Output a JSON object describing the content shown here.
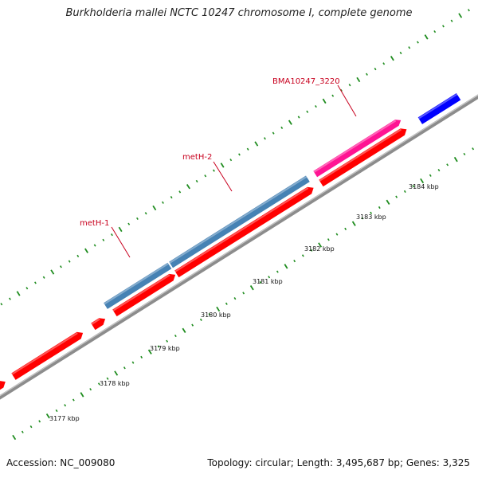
{
  "title": "Burkholderia mallei NCTC 10247 chromosome I, complete genome",
  "footer": {
    "accession": "Accession: NC_009080",
    "summary": "Topology: circular; Length: 3,495,687 bp; Genes: 3,325"
  },
  "kbp_labels": [
    "3177 kbp",
    "3178 kbp",
    "3179 kbp",
    "3180 kbp",
    "3181 kbp",
    "3182 kbp",
    "3183 kbp",
    "3184 kbp"
  ],
  "gene_labels": [
    "metH-1",
    "metH-2",
    "BMA10247_3220"
  ],
  "colors": {
    "backbone": "#8c8c8c",
    "cds": "#ff0000",
    "gene_blue": "#4682b4",
    "gene_pink": "#ff1493",
    "gene_navy": "#0000ff",
    "gene_orange": "#ffa500",
    "tick": "#1e8c1e",
    "label": "#c8001e"
  }
}
